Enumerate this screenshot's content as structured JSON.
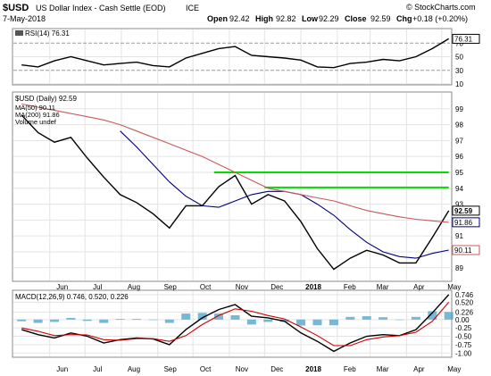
{
  "header": {
    "symbol": "$USD",
    "name": "US Dollar Index - Cash Settle (EOD)",
    "exchange": "ICE",
    "date": "7-May-2018",
    "watermark": "© StockCharts.com",
    "open_label": "Open",
    "open": "92.42",
    "high_label": "High",
    "high": "92.82",
    "low_label": "Low",
    "low": "92.29",
    "close_label": "Close",
    "close": "92.59",
    "chg_label": "Chg",
    "chg": "+0.18 (+0.20%)"
  },
  "chart_data": [
    {
      "type": "line",
      "panel": "rsi",
      "title": "RSI(14) 76.31",
      "ylim": [
        10,
        90
      ],
      "y_ticks": [
        10,
        30,
        50,
        70
      ],
      "reference_lines": [
        30,
        70
      ],
      "last_value_label": "76.31",
      "x": [
        "2017-05-08",
        "2017-05-22",
        "2017-06-05",
        "2017-06-19",
        "2017-07-03",
        "2017-07-17",
        "2017-07-31",
        "2017-08-14",
        "2017-08-28",
        "2017-09-11",
        "2017-09-25",
        "2017-10-09",
        "2017-10-23",
        "2017-11-06",
        "2017-11-20",
        "2017-12-04",
        "2017-12-18",
        "2018-01-01",
        "2018-01-15",
        "2018-01-29",
        "2018-02-12",
        "2018-02-26",
        "2018-03-12",
        "2018-03-26",
        "2018-04-09",
        "2018-04-23",
        "2018-05-07"
      ],
      "series": [
        {
          "values": [
            38,
            35,
            44,
            50,
            44,
            38,
            40,
            42,
            37,
            35,
            48,
            55,
            62,
            65,
            52,
            50,
            48,
            45,
            35,
            34,
            40,
            42,
            46,
            44,
            50,
            62,
            76.31
          ],
          "color": "#000000"
        }
      ]
    },
    {
      "type": "line",
      "panel": "price",
      "title": "$USD (Daily) 92.59",
      "ylim": [
        88.2,
        100
      ],
      "y_ticks": [
        89,
        90,
        91,
        92,
        93,
        94,
        95,
        96,
        97,
        98,
        99
      ],
      "x": [
        "2017-05-08",
        "2017-05-22",
        "2017-06-05",
        "2017-06-19",
        "2017-07-03",
        "2017-07-17",
        "2017-07-31",
        "2017-08-14",
        "2017-08-28",
        "2017-09-11",
        "2017-09-25",
        "2017-10-09",
        "2017-10-23",
        "2017-11-06",
        "2017-11-20",
        "2017-12-04",
        "2017-12-18",
        "2018-01-01",
        "2018-01-15",
        "2018-01-29",
        "2018-02-12",
        "2018-02-26",
        "2018-03-12",
        "2018-03-26",
        "2018-04-09",
        "2018-04-23",
        "2018-05-07"
      ],
      "series": [
        {
          "name": "$USD (Daily) 92.59",
          "color": "#000000",
          "values": [
            98.6,
            97.5,
            96.9,
            97.2,
            95.9,
            94.7,
            93.6,
            93.1,
            92.4,
            91.5,
            92.9,
            92.9,
            94.1,
            94.8,
            93.0,
            93.6,
            93.2,
            91.9,
            90.2,
            88.9,
            89.6,
            90.1,
            89.8,
            89.3,
            89.3,
            90.9,
            92.59
          ]
        },
        {
          "name": "MA(50) 90.11",
          "color": "#000080",
          "values": [
            null,
            null,
            null,
            null,
            null,
            null,
            97.6,
            96.6,
            95.5,
            94.4,
            93.5,
            92.9,
            92.8,
            93.2,
            93.6,
            93.8,
            93.8,
            93.6,
            93.0,
            92.3,
            91.4,
            90.6,
            90.0,
            89.7,
            89.6,
            89.9,
            90.11
          ]
        },
        {
          "name": "MA(200) 91.86",
          "color": "#c85a5a",
          "values": [
            99.3,
            99.1,
            98.9,
            98.7,
            98.5,
            98.3,
            98.0,
            97.6,
            97.2,
            96.8,
            96.4,
            96.0,
            95.5,
            95.0,
            94.5,
            94.0,
            93.8,
            93.6,
            93.4,
            93.2,
            92.9,
            92.6,
            92.4,
            92.2,
            92.05,
            91.95,
            91.86
          ]
        }
      ],
      "annotations": [
        {
          "type": "hline",
          "y": 95.0,
          "x_start": "2017-10-19",
          "x_end": "2018-05-07",
          "color": "#00dd00"
        },
        {
          "type": "hline",
          "y": 94.05,
          "x_start": "2017-12-01",
          "x_end": "2018-05-07",
          "color": "#00dd00"
        }
      ],
      "legend": [
        "$USD (Daily) 92.59",
        "MA(50) 90.11",
        "MA(200) 91.86",
        "Volume undef"
      ],
      "price_labels": [
        "92.59",
        "91.86",
        "90.11"
      ]
    },
    {
      "type": "line",
      "panel": "macd",
      "title": "MACD(12,26,9) 0.746, 0.520, 0.226",
      "ylim": [
        -1.1,
        0.85
      ],
      "y_ticks": [
        "0.746",
        "0.520",
        "0.226",
        "0.00",
        "-0.25",
        "-0.50",
        "-0.75",
        "-1.00"
      ],
      "x": [
        "2017-05-08",
        "2017-05-22",
        "2017-06-05",
        "2017-06-19",
        "2017-07-03",
        "2017-07-17",
        "2017-07-31",
        "2017-08-14",
        "2017-08-28",
        "2017-09-11",
        "2017-09-25",
        "2017-10-09",
        "2017-10-23",
        "2017-11-06",
        "2017-11-20",
        "2017-12-04",
        "2017-12-18",
        "2018-01-01",
        "2018-01-15",
        "2018-01-29",
        "2018-02-12",
        "2018-02-26",
        "2018-03-12",
        "2018-03-26",
        "2018-04-09",
        "2018-04-23",
        "2018-05-07"
      ],
      "series": [
        {
          "name": "MACD",
          "color": "#000000",
          "values": [
            -0.3,
            -0.45,
            -0.55,
            -0.4,
            -0.5,
            -0.7,
            -0.6,
            -0.55,
            -0.58,
            -0.75,
            -0.3,
            0.05,
            0.3,
            0.45,
            0.1,
            0.05,
            -0.05,
            -0.4,
            -0.65,
            -0.95,
            -0.7,
            -0.5,
            -0.45,
            -0.48,
            -0.3,
            0.2,
            0.746
          ]
        },
        {
          "name": "Signal",
          "color": "#cc0000",
          "values": [
            -0.25,
            -0.35,
            -0.48,
            -0.45,
            -0.46,
            -0.6,
            -0.62,
            -0.57,
            -0.57,
            -0.65,
            -0.48,
            -0.15,
            0.12,
            0.32,
            0.25,
            0.12,
            0.02,
            -0.22,
            -0.48,
            -0.78,
            -0.78,
            -0.6,
            -0.52,
            -0.48,
            -0.38,
            -0.05,
            0.52
          ]
        },
        {
          "name": "Histogram",
          "color": "#4aa0c8",
          "values": [
            -0.05,
            -0.1,
            -0.07,
            0.05,
            -0.04,
            -0.1,
            0.02,
            0.02,
            -0.01,
            -0.1,
            0.18,
            0.2,
            0.18,
            0.13,
            -0.15,
            -0.07,
            -0.07,
            -0.18,
            -0.17,
            -0.17,
            0.08,
            0.1,
            0.07,
            0.0,
            0.08,
            0.25,
            0.226
          ]
        }
      ]
    }
  ],
  "x_axis": {
    "labels": [
      "Jun",
      "Jul",
      "Aug",
      "Sep",
      "Oct",
      "Nov",
      "Dec",
      "2018",
      "Feb",
      "Mar",
      "Apr",
      "May"
    ],
    "label_dates": [
      "2017-06-01",
      "2017-07-01",
      "2017-08-01",
      "2017-09-01",
      "2017-10-01",
      "2017-11-01",
      "2017-12-01",
      "2018-01-01",
      "2018-02-01",
      "2018-03-01",
      "2018-04-01",
      "2018-05-01"
    ]
  }
}
